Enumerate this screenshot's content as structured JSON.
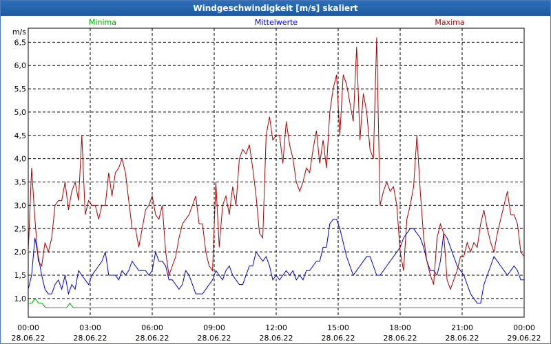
{
  "chart_data": {
    "type": "line",
    "title": "Windgeschwindigkeit [m/s] skaliert",
    "ylabel": "m/s",
    "ylim": [
      0.6,
      6.8
    ],
    "xlim": [
      "28.06.22 00:00",
      "29.06.22 00:00"
    ],
    "grid": true,
    "yticks": [
      "1,0",
      "1,5",
      "2,0",
      "2,5",
      "3,0",
      "3,5",
      "4,0",
      "4,5",
      "5,0",
      "5,5",
      "6,0",
      "6,5"
    ],
    "xticks": [
      {
        "time": "00:00",
        "date": "28.06.22"
      },
      {
        "time": "03:00",
        "date": "28.06.22"
      },
      {
        "time": "06:00",
        "date": "28.06.22"
      },
      {
        "time": "09:00",
        "date": "28.06.22"
      },
      {
        "time": "12:00",
        "date": "28.06.22"
      },
      {
        "time": "15:00",
        "date": "28.06.22"
      },
      {
        "time": "18:00",
        "date": "28.06.22"
      },
      {
        "time": "21:00",
        "date": "28.06.22"
      },
      {
        "time": "00:00",
        "date": "29.06.22"
      }
    ],
    "sample_interval_minutes": 10,
    "series": [
      {
        "name": "Minima",
        "color": "#00aa00",
        "values": [
          0.9,
          0.9,
          1.0,
          0.9,
          0.9,
          0.8,
          0.8,
          0.8,
          0.8,
          0.8,
          0.8,
          0.8,
          0.9,
          0.8,
          0.8,
          0.8,
          0.8,
          0.8,
          0.8,
          0.8,
          0.8,
          0.8,
          0.8,
          0.8,
          0.8,
          0.8,
          0.8,
          0.8,
          0.8,
          0.8,
          0.8,
          0.8,
          0.8,
          0.8,
          0.8,
          0.8,
          0.8,
          0.8,
          0.8,
          0.8,
          0.8,
          0.8,
          0.8,
          0.8,
          0.8,
          0.8,
          0.8,
          0.8,
          0.8,
          0.8,
          0.8,
          0.8,
          0.8,
          0.8,
          0.8,
          0.8,
          0.8,
          0.8,
          0.8,
          0.8,
          0.8,
          0.8,
          0.8,
          0.8,
          0.8,
          0.8,
          0.8,
          0.8,
          0.8,
          0.8,
          0.8,
          0.8,
          0.8,
          0.8,
          0.8,
          0.8,
          0.8,
          0.8,
          0.8,
          0.8,
          0.8,
          0.8,
          0.8,
          0.8,
          0.8,
          0.8,
          0.8,
          0.8,
          0.8,
          0.8,
          0.8,
          0.8,
          0.8,
          0.8,
          0.8,
          0.8,
          0.8,
          0.8,
          0.8,
          0.8,
          0.8,
          0.8,
          0.8,
          0.8,
          0.8,
          0.8,
          0.8,
          0.8,
          0.8,
          0.8,
          0.8,
          0.8,
          0.8,
          0.8,
          0.8,
          0.8,
          0.8,
          0.8,
          0.8,
          0.8,
          0.8,
          0.8,
          0.8,
          0.8,
          0.8,
          0.8,
          0.8,
          0.8,
          0.8,
          0.8,
          0.8,
          0.8,
          0.8,
          0.8,
          0.8,
          0.8,
          0.8,
          0.8,
          0.8,
          0.8,
          0.8,
          0.8,
          0.8,
          0.8
        ]
      },
      {
        "name": "Mittelwerte",
        "color": "#0000cc",
        "values": [
          1.2,
          1.5,
          2.3,
          1.9,
          1.5,
          1.2,
          1.1,
          1.1,
          1.3,
          1.4,
          1.2,
          1.5,
          1.1,
          1.3,
          1.2,
          1.6,
          1.5,
          1.4,
          1.3,
          1.5,
          1.6,
          1.7,
          1.8,
          2.0,
          1.5,
          1.5,
          1.5,
          1.4,
          1.6,
          1.5,
          1.6,
          1.8,
          1.7,
          1.6,
          1.6,
          1.6,
          1.5,
          1.6,
          2.0,
          1.8,
          1.8,
          1.7,
          1.4,
          1.4,
          1.3,
          1.2,
          1.3,
          1.6,
          1.5,
          1.3,
          1.1,
          1.1,
          1.1,
          1.2,
          1.3,
          1.4,
          1.6,
          1.5,
          1.4,
          1.6,
          1.7,
          1.5,
          1.4,
          1.3,
          1.3,
          1.5,
          1.7,
          1.7,
          2.0,
          1.9,
          1.8,
          1.9,
          1.7,
          1.4,
          1.5,
          1.4,
          1.5,
          1.6,
          1.5,
          1.6,
          1.4,
          1.5,
          1.4,
          1.6,
          1.6,
          1.7,
          1.8,
          1.8,
          2.1,
          2.1,
          2.6,
          2.7,
          2.7,
          2.5,
          2.2,
          1.9,
          1.7,
          1.5,
          1.6,
          1.7,
          1.8,
          1.9,
          1.9,
          1.7,
          1.5,
          1.5,
          1.6,
          1.7,
          1.8,
          1.9,
          2.0,
          2.1,
          2.3,
          2.4,
          2.5,
          2.5,
          2.4,
          2.3,
          2.1,
          1.8,
          1.6,
          1.6,
          1.5,
          1.8,
          2.4,
          2.3,
          2.1,
          1.9,
          1.7,
          1.6,
          1.5,
          1.3,
          1.1,
          1.0,
          0.9,
          0.9,
          1.3,
          1.5,
          1.7,
          1.9,
          1.8,
          1.7,
          1.6,
          1.5,
          1.6,
          1.7,
          1.6,
          1.4,
          1.4
        ]
      },
      {
        "name": "Maxima",
        "color": "#aa0000",
        "values": [
          2.0,
          3.8,
          2.7,
          1.8,
          1.7,
          2.2,
          2.0,
          2.3,
          3.0,
          3.1,
          3.1,
          3.5,
          2.9,
          3.3,
          3.5,
          3.1,
          4.5,
          2.8,
          3.1,
          3.0,
          3.0,
          2.7,
          3.0,
          3.0,
          3.7,
          3.2,
          3.7,
          3.8,
          4.0,
          3.7,
          3.1,
          2.5,
          2.5,
          2.1,
          2.5,
          2.9,
          3.0,
          3.2,
          2.8,
          2.7,
          3.0,
          2.0,
          1.5,
          1.7,
          1.9,
          2.3,
          2.6,
          2.7,
          2.8,
          3.0,
          3.2,
          2.6,
          2.6,
          2.0,
          1.7,
          1.6,
          3.5,
          2.1,
          3.0,
          3.2,
          2.8,
          3.4,
          3.0,
          4.0,
          4.2,
          4.1,
          4.3,
          3.8,
          3.2,
          2.4,
          2.3,
          4.5,
          4.9,
          4.4,
          4.5,
          4.5,
          3.9,
          4.8,
          4.3,
          4.0,
          3.5,
          3.3,
          3.5,
          3.8,
          3.7,
          4.2,
          4.6,
          3.9,
          4.4,
          3.8,
          5.0,
          5.5,
          5.8,
          4.5,
          5.8,
          5.6,
          5.2,
          4.8,
          6.4,
          4.4,
          5.4,
          5.0,
          4.2,
          4.0,
          6.6,
          3.0,
          3.3,
          3.5,
          3.3,
          3.4,
          3.0,
          2.0,
          1.6,
          2.7,
          3.0,
          3.4,
          4.5,
          3.3,
          2.3,
          1.8,
          1.5,
          1.3,
          2.3,
          2.6,
          2.4,
          1.4,
          1.2,
          1.4,
          1.6,
          1.9,
          1.9,
          2.2,
          2.0,
          2.2,
          2.1,
          2.6,
          2.9,
          2.5,
          2.2,
          2.0,
          2.4,
          2.7,
          3.0,
          3.3,
          2.8,
          2.8,
          2.6,
          2.0,
          1.9
        ]
      }
    ]
  }
}
